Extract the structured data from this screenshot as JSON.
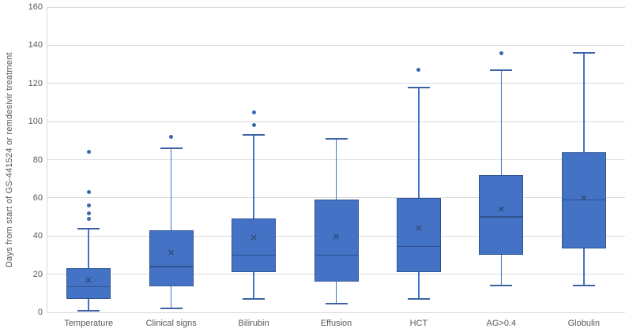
{
  "chart_data": {
    "type": "box",
    "title": "",
    "xlabel": "",
    "ylabel": "Days from start of GS-441524 or remdesivir treatment",
    "ylim": [
      0,
      160
    ],
    "ytick_interval": 20,
    "yticks": [
      0,
      20,
      40,
      60,
      80,
      100,
      120,
      140,
      160
    ],
    "grid": "horizontal",
    "legend": "none",
    "categories": [
      "Temperature",
      "Clinical signs",
      "Bilirubin",
      "Effusion",
      "HCT",
      "AG>0.4",
      "Globulin"
    ],
    "series": [
      {
        "category": "Temperature",
        "whisker_low": 1,
        "q1": 7,
        "median": 13.5,
        "mean": 16.5,
        "q3": 23,
        "whisker_high": 44,
        "outliers": [
          49,
          52,
          56,
          63,
          84
        ]
      },
      {
        "category": "Clinical signs",
        "whisker_low": 2,
        "q1": 13.5,
        "median": 24,
        "mean": 31,
        "q3": 43,
        "whisker_high": 86,
        "outliers": [
          92
        ]
      },
      {
        "category": "Bilirubin",
        "whisker_low": 7,
        "q1": 21,
        "median": 30,
        "mean": 38.5,
        "q3": 49,
        "whisker_high": 93,
        "outliers": [
          98,
          105
        ]
      },
      {
        "category": "Effusion",
        "whisker_low": 4.5,
        "q1": 16,
        "median": 30,
        "mean": 39,
        "q3": 59,
        "whisker_high": 91,
        "outliers": []
      },
      {
        "category": "HCT",
        "whisker_low": 7,
        "q1": 21,
        "median": 34.5,
        "mean": 43.5,
        "q3": 60,
        "whisker_high": 118,
        "outliers": [
          127
        ]
      },
      {
        "category": "AG>0.4",
        "whisker_low": 14,
        "q1": 30,
        "median": 50,
        "mean": 53.5,
        "q3": 72,
        "whisker_high": 127,
        "outliers": [
          136
        ]
      },
      {
        "category": "Globulin",
        "whisker_low": 14,
        "q1": 33.5,
        "median": 59,
        "mean": 59.5,
        "q3": 84,
        "whisker_high": 136,
        "outliers": []
      }
    ],
    "mean_marker_glyph": "✕",
    "colors": {
      "box_fill": "#4472c4",
      "box_border": "#2f5597",
      "median_line": "#2f528f",
      "mean_marker": "#2e4d7c",
      "whisker": "#4472c4",
      "whisker_cap": "#3c62a5",
      "outlier": "#3b66b0",
      "gridline": "#d9d9d9",
      "text": "#595959"
    }
  }
}
